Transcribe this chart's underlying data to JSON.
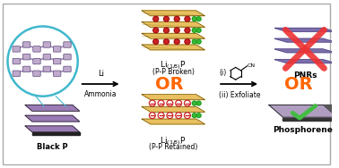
{
  "bg_color": "#FFFFFF",
  "black_p_label": "Black P",
  "li1_formula": "Li",
  "li1_sub": "(1/8)",
  "li1_P": "P",
  "li1_sublabel": "(P-P Broken)",
  "li2_sublabel": "(P-P Retained)",
  "pnr_label": "PNRs",
  "phosphorene_label": "Phosphorene",
  "or_color": "#FF6600",
  "li_label": "Li",
  "ammonia_label": "Ammonia",
  "step_i_label": "(i)",
  "step_ii_label": "(ii) Exfoliate",
  "layer_gold": "#C8A030",
  "layer_gold_edge": "#5A4500",
  "layer_gold_top": "#E8C060",
  "layer_purple": "#9B7BB5",
  "layer_purple_dark": "#6B4B85",
  "layer_dark": "#1A1A1A",
  "circle_border": "#40B8CC",
  "dot_green": "#33BB33",
  "dot_green_dark": "#228822",
  "dot_red": "#CC2222",
  "minus_red": "#DD2222",
  "cross_red": "#EE3333",
  "check_green": "#44BB44",
  "pnr_line_fill": "#7B6FAA",
  "pnr_line_dark": "#4A3A7A",
  "phosphorene_fill": "#B09EC0",
  "phosphorene_dark": "#7A6A90",
  "cn_color": "#111111",
  "border_color": "#AAAAAA"
}
